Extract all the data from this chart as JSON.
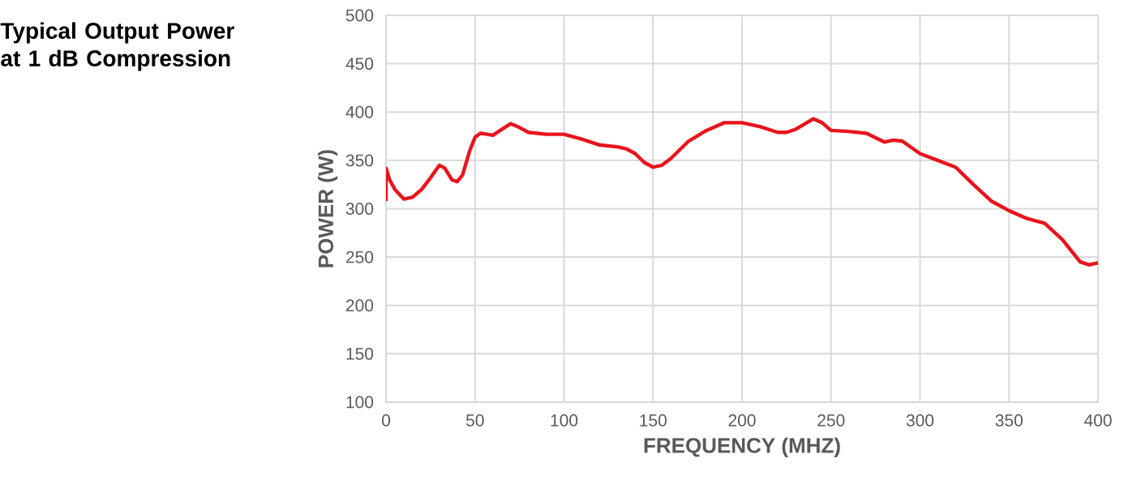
{
  "chart_data": {
    "type": "line",
    "title": "Typical Output Power at 1 dB Compression",
    "xlabel": "FREQUENCY (MHZ)",
    "ylabel": "POWER (W)",
    "color": "#e8141c",
    "grid": true,
    "xlim": [
      0,
      400
    ],
    "ylim": [
      100,
      500
    ],
    "xticks": [
      0,
      50,
      100,
      150,
      200,
      250,
      300,
      350,
      400
    ],
    "yticks": [
      100,
      150,
      200,
      250,
      300,
      350,
      400,
      450,
      500
    ],
    "x": [
      0,
      0,
      2,
      5,
      10,
      15,
      20,
      25,
      30,
      33,
      37,
      40,
      43,
      47,
      50,
      53,
      57,
      60,
      65,
      70,
      75,
      80,
      90,
      100,
      110,
      120,
      130,
      135,
      140,
      145,
      150,
      155,
      160,
      170,
      180,
      190,
      200,
      210,
      220,
      225,
      230,
      240,
      245,
      250,
      260,
      270,
      280,
      285,
      290,
      300,
      310,
      320,
      330,
      340,
      350,
      360,
      370,
      380,
      390,
      395,
      400
    ],
    "values": [
      308,
      342,
      330,
      320,
      310,
      312,
      320,
      332,
      345,
      342,
      330,
      328,
      335,
      360,
      374,
      378,
      377,
      376,
      382,
      388,
      384,
      379,
      377,
      377,
      372,
      366,
      364,
      362,
      357,
      348,
      343,
      345,
      352,
      370,
      381,
      389,
      389,
      385,
      379,
      379,
      382,
      393,
      389,
      381,
      380,
      378,
      369,
      371,
      370,
      357,
      350,
      343,
      325,
      308,
      298,
      290,
      285,
      268,
      245,
      242,
      244
    ]
  }
}
